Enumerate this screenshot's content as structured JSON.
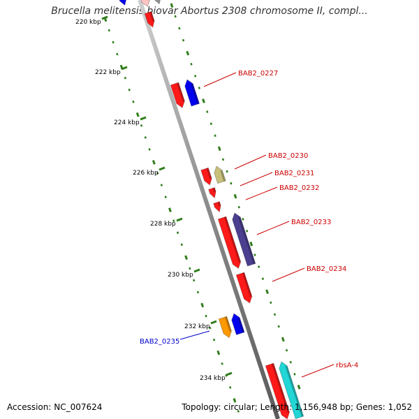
{
  "title": "Brucella melitensis biovar Abortus 2308 chromosome II, compl...",
  "footer": {
    "accession": "Accession: NC_007624",
    "summary": "Topology: circular; Length: 1,156,948 bp; Genes: 1,052"
  },
  "colors": {
    "backbone": "#8c8c8c",
    "tick": "#2e7d1a",
    "label_red": "#cc0000",
    "label_blue": "#0000cc",
    "cds_red": "#ff1a1a",
    "cds_blue": "#0000ee",
    "cds_khaki": "#c8c07a",
    "cds_purple": "#4b3f8f",
    "cds_orange": "#ff9900",
    "cds_cyan": "#22d6d6",
    "cds_pink": "#ffc4c4",
    "cds_gray": "#909090"
  },
  "scale_labels": [
    "220 kbp",
    "222 kbp",
    "224 kbp",
    "226 kbp",
    "228 kbp",
    "230 kbp",
    "232 kbp",
    "234 kbp"
  ],
  "gene_labels": [
    {
      "text": "BAB2_0227",
      "color": "red"
    },
    {
      "text": "BAB2_0230",
      "color": "red"
    },
    {
      "text": "BAB2_0231",
      "color": "red"
    },
    {
      "text": "BAB2_0232",
      "color": "red"
    },
    {
      "text": "BAB2_0233",
      "color": "red"
    },
    {
      "text": "BAB2_0234",
      "color": "red"
    },
    {
      "text": "BAB2_0235",
      "color": "blue"
    },
    {
      "text": "rbsA-4",
      "color": "red"
    }
  ]
}
